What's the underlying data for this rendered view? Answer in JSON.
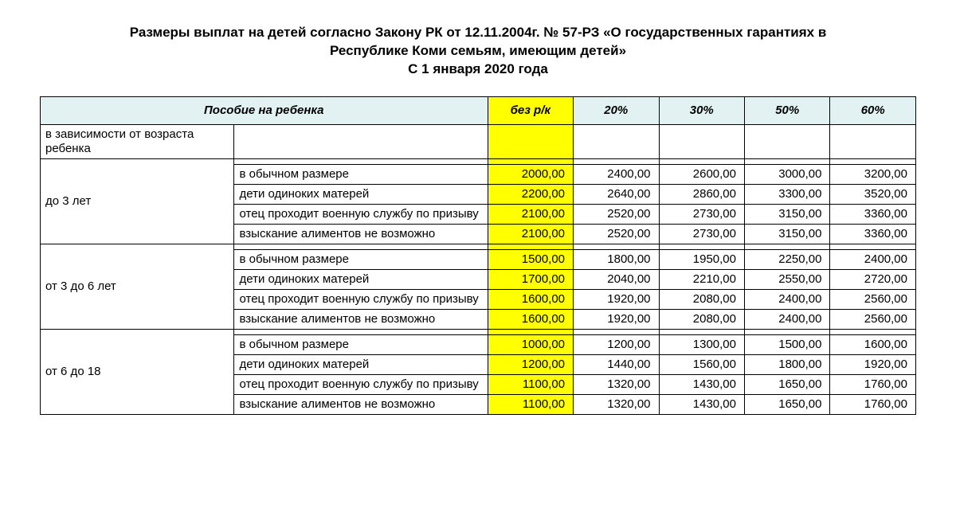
{
  "title_lines": [
    "Размеры выплат на детей  согласно Закону РК  от 12.11.2004г. № 57-РЗ «О государственных гарантиях в",
    "Республике Коми семьям, имеющим детей»",
    "С 1 января 2020 года"
  ],
  "columns": {
    "benefit": "Пособие на ребенка",
    "base": "без р/к",
    "p20": "20%",
    "p30": "30%",
    "p50": "50%",
    "p60": "60%"
  },
  "row_dep_age": "в зависимости от возраста ребенка",
  "conditions": {
    "normal": "в обычном размере",
    "single": "дети одиноких матерей",
    "army": "отец проходит военную службу по призыву",
    "aliment": "взыскание алиментов не возможно"
  },
  "groups": [
    {
      "label": "до 3 лет",
      "rows": [
        {
          "cond": "normal",
          "v": [
            "2000,00",
            "2400,00",
            "2600,00",
            "3000,00",
            "3200,00"
          ]
        },
        {
          "cond": "single",
          "v": [
            "2200,00",
            "2640,00",
            "2860,00",
            "3300,00",
            "3520,00"
          ]
        },
        {
          "cond": "army",
          "v": [
            "2100,00",
            "2520,00",
            "2730,00",
            "3150,00",
            "3360,00"
          ]
        },
        {
          "cond": "aliment",
          "v": [
            "2100,00",
            "2520,00",
            "2730,00",
            "3150,00",
            "3360,00"
          ]
        }
      ]
    },
    {
      "label": "от 3 до 6 лет",
      "rows": [
        {
          "cond": "normal",
          "v": [
            "1500,00",
            "1800,00",
            "1950,00",
            "2250,00",
            "2400,00"
          ]
        },
        {
          "cond": "single",
          "v": [
            "1700,00",
            "2040,00",
            "2210,00",
            "2550,00",
            "2720,00"
          ]
        },
        {
          "cond": "army",
          "v": [
            "1600,00",
            "1920,00",
            "2080,00",
            "2400,00",
            "2560,00"
          ]
        },
        {
          "cond": "aliment",
          "v": [
            "1600,00",
            "1920,00",
            "2080,00",
            "2400,00",
            "2560,00"
          ]
        }
      ]
    },
    {
      "label": "от 6 до 18",
      "rows": [
        {
          "cond": "normal",
          "v": [
            "1000,00",
            "1200,00",
            "1300,00",
            "1500,00",
            "1600,00"
          ]
        },
        {
          "cond": "single",
          "v": [
            "1200,00",
            "1440,00",
            "1560,00",
            "1800,00",
            "1920,00"
          ]
        },
        {
          "cond": "army",
          "v": [
            "1100,00",
            "1320,00",
            "1430,00",
            "1650,00",
            "1760,00"
          ]
        },
        {
          "cond": "aliment",
          "v": [
            "1100,00",
            "1320,00",
            "1430,00",
            "1650,00",
            "1760,00"
          ]
        }
      ]
    }
  ],
  "colors": {
    "header_bg": "#e2f2f2",
    "highlight_bg": "#ffff00",
    "border": "#000000",
    "text": "#000000",
    "page_bg": "#ffffff"
  }
}
